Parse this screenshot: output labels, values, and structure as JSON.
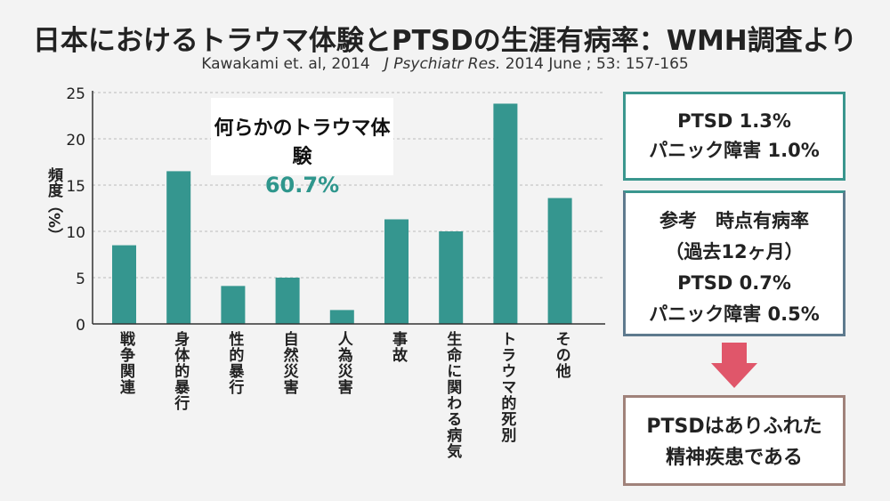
{
  "title": "日本におけるトラウマ体験とPTSDの生涯有病率：WMH調査より",
  "subtitle": {
    "authors": "Kawakami et. al, 2014",
    "journal": "J Psychiatr Res.",
    "rest": "2014 June ; 53: 157-165"
  },
  "callout": {
    "label": "何らかのトラウマ体験",
    "value": "60.7%"
  },
  "boxes": {
    "lifetime": {
      "line1": "PTSD 1.3%",
      "line2": "パニック障害 1.0%"
    },
    "reference": {
      "line1": "参考　時点有病率",
      "line2": "（過去12ヶ月）",
      "line3": "PTSD 0.7%",
      "line4": "パニック障害 0.5%"
    },
    "conclusion": {
      "line1": "PTSDはありふれた",
      "line2": "精神疾患である"
    }
  },
  "colors": {
    "bar": "#35968f",
    "accent": "#2e968c",
    "arrow": "#e0566a"
  },
  "chart_data": {
    "type": "bar",
    "title": "",
    "ylabel": "頻度（%）",
    "xlabel": "",
    "ylim": [
      0,
      25
    ],
    "yticks": [
      "0",
      "5",
      "10",
      "15",
      "20",
      "25"
    ],
    "grid": true,
    "categories": [
      "戦争関連",
      "身体的暴行",
      "性的暴行",
      "自然災害",
      "人為災害",
      "事故",
      "生命に関わる病気",
      "トラウマ的死別",
      "その他"
    ],
    "values": [
      8.5,
      16.5,
      4.1,
      5.0,
      1.5,
      11.3,
      10.0,
      23.8,
      13.6
    ]
  }
}
